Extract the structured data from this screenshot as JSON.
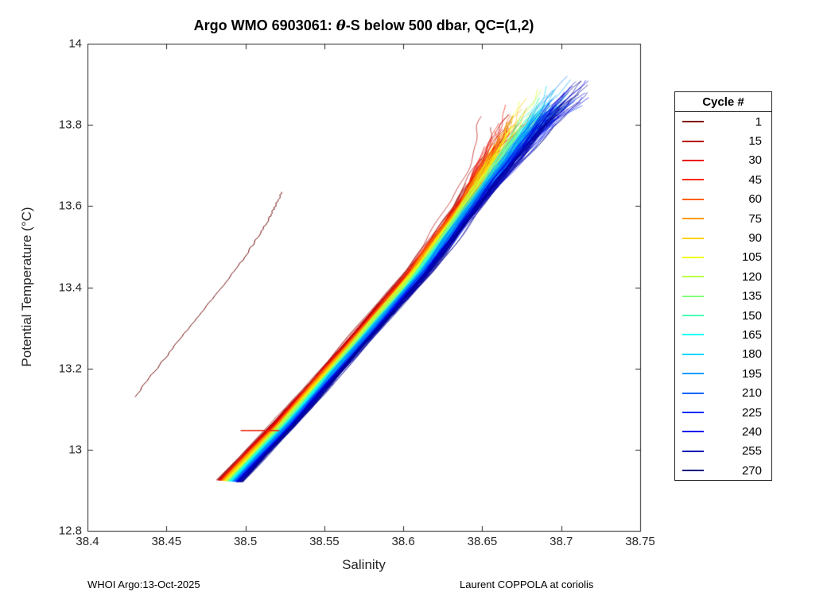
{
  "figure": {
    "title_prefix": "Argo WMO 6903061: ",
    "title_theta": "θ",
    "title_suffix": "-S below 500 dbar,  QC=(1,2)",
    "footer_left": "WHOI Argo:13-Oct-2025",
    "footer_right": "Laurent COPPOLA at coriolis"
  },
  "chart_data": {
    "type": "line",
    "title": "Argo WMO 6903061: θ-S below 500 dbar,  QC=(1,2)",
    "xlabel": "Salinity",
    "ylabel": "Potential Temperature (°C)",
    "xlim": [
      38.4,
      38.75
    ],
    "ylim": [
      12.8,
      14
    ],
    "xticks": [
      "38.4",
      "38.45",
      "38.5",
      "38.55",
      "38.6",
      "38.65",
      "38.7",
      "38.75"
    ],
    "yticks": [
      "12.8",
      "13",
      "13.2",
      "13.4",
      "13.6",
      "13.8",
      "14"
    ],
    "grid": "off",
    "legend_position": "right-outside",
    "legend": {
      "title": "Cycle #",
      "entries": [
        1,
        15,
        30,
        45,
        60,
        75,
        90,
        105,
        120,
        135,
        150,
        165,
        180,
        195,
        210,
        225,
        240,
        255,
        270
      ]
    },
    "n_cycles": 270,
    "colormap": "jet-reversed (cycle 1 = dark red, cycle 270 = dark blue)",
    "band_first_cycle": [
      [
        38.483,
        12.925
      ],
      [
        38.518,
        13.065
      ],
      [
        38.545,
        13.18
      ],
      [
        38.602,
        13.435
      ],
      [
        38.633,
        13.6
      ],
      [
        38.652,
        13.73
      ],
      [
        38.66,
        13.8
      ]
    ],
    "band_last_cycle": [
      [
        38.497,
        12.92
      ],
      [
        38.531,
        13.06
      ],
      [
        38.558,
        13.18
      ],
      [
        38.617,
        13.44
      ],
      [
        38.656,
        13.64
      ],
      [
        38.695,
        13.82
      ],
      [
        38.722,
        13.92
      ]
    ],
    "outlier_series": {
      "cycle": 1,
      "color": "#6b0000",
      "points": [
        [
          38.43,
          13.13
        ],
        [
          38.444,
          13.2
        ],
        [
          38.458,
          13.27
        ],
        [
          38.472,
          13.335
        ],
        [
          38.487,
          13.41
        ],
        [
          38.499,
          13.47
        ],
        [
          38.508,
          13.525
        ],
        [
          38.515,
          13.57
        ],
        [
          38.519,
          13.6
        ],
        [
          38.523,
          13.635
        ]
      ]
    },
    "spike_series": {
      "color": "#e8250c",
      "y": 13.047,
      "x_start": 38.497,
      "x_end": 38.5215
    }
  }
}
